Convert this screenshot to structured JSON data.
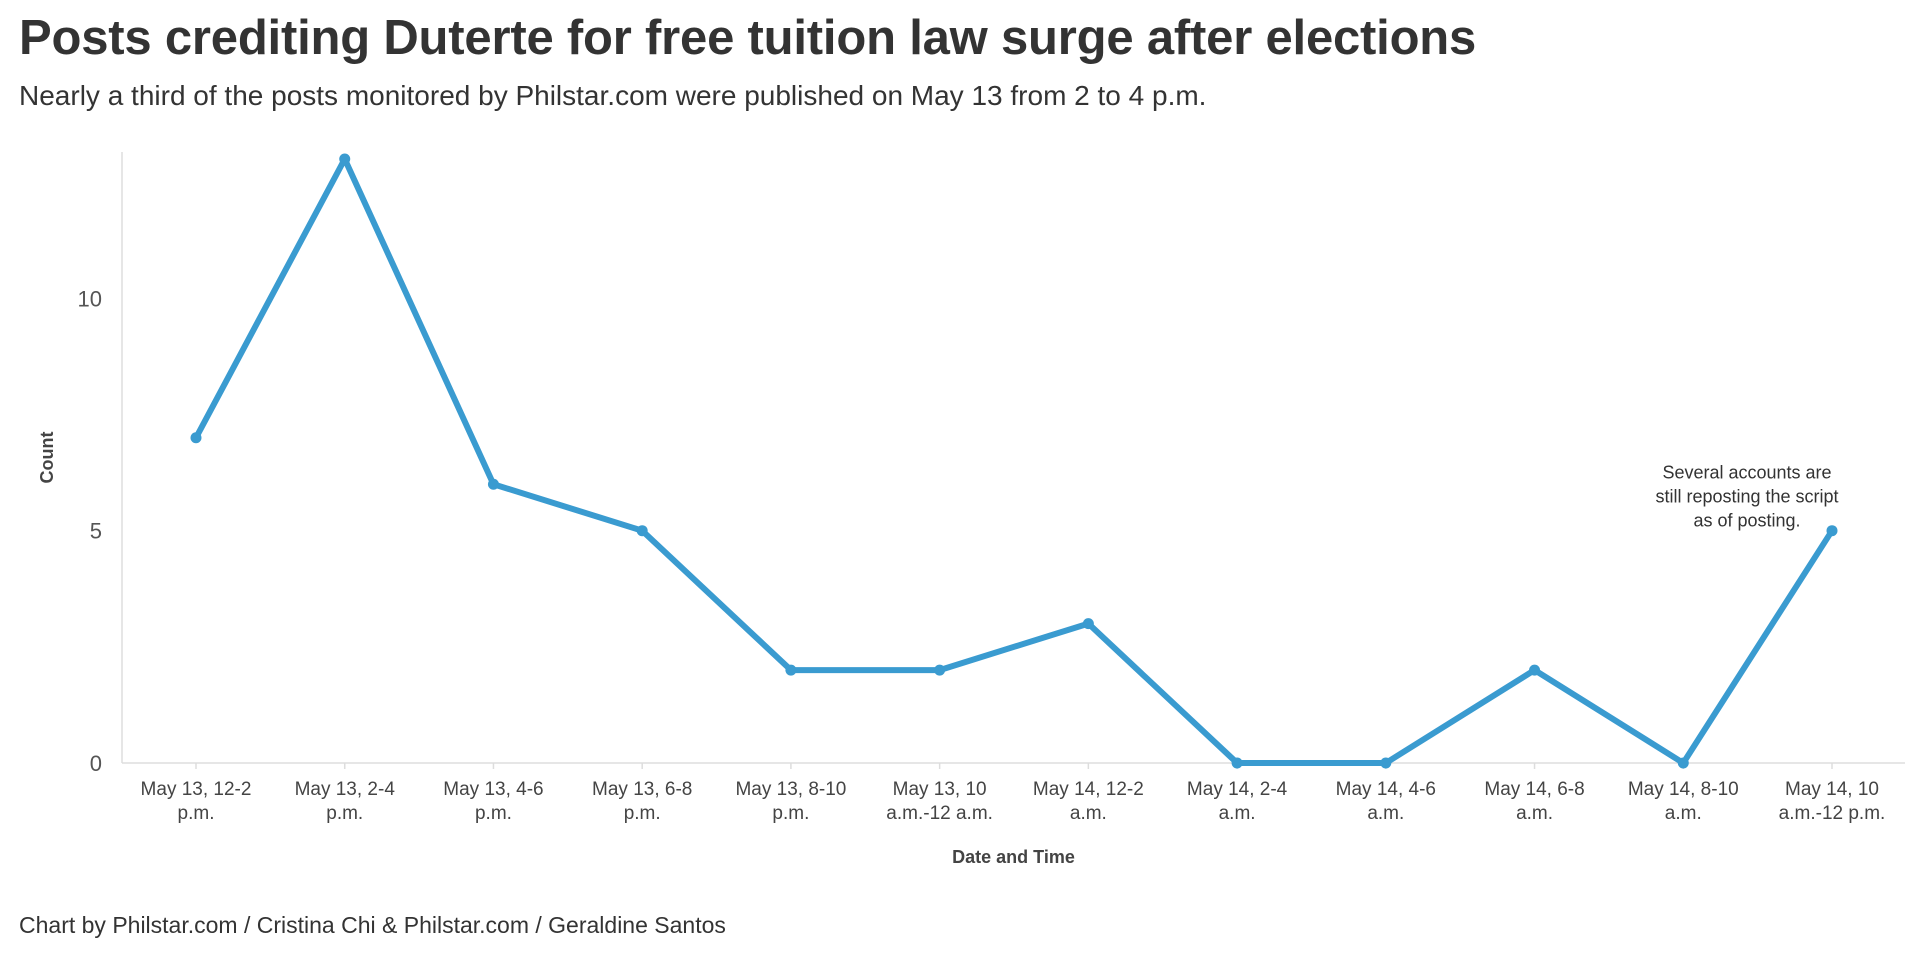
{
  "header": {
    "title": "Posts crediting Duterte for free tuition law surge after elections",
    "subtitle": "Nearly a third of the posts monitored by Philstar.com were published on May 13 from 2 to 4 p.m."
  },
  "footer": {
    "credit": "Chart by Philstar.com / Cristina Chi & Philstar.com / Geraldine Santos"
  },
  "chart_data": {
    "type": "line",
    "title": "Posts crediting Duterte for free tuition law surge after elections",
    "subtitle": "Nearly a third of the posts monitored by Philstar.com were published on May 13 from 2 to 4 p.m.",
    "xlabel": "Date and Time",
    "ylabel": "Count",
    "ylim": [
      0,
      13
    ],
    "yticks": [
      0,
      5,
      10
    ],
    "grid": false,
    "line_color": "#3a9bd0",
    "categories": [
      [
        "May 13, 12-2",
        "p.m."
      ],
      [
        "May 13, 2-4",
        "p.m."
      ],
      [
        "May 13, 4-6",
        "p.m."
      ],
      [
        "May 13, 6-8",
        "p.m."
      ],
      [
        "May 13, 8-10",
        "p.m."
      ],
      [
        "May 13, 10",
        "a.m.-12 a.m."
      ],
      [
        "May 14, 12-2",
        "a.m."
      ],
      [
        "May 14, 2-4",
        "a.m."
      ],
      [
        "May 14, 4-6",
        "a.m."
      ],
      [
        "May 14, 6-8",
        "a.m."
      ],
      [
        "May 14, 8-10",
        "a.m."
      ],
      [
        "May 14, 10",
        "a.m.-12 p.m."
      ]
    ],
    "series": [
      {
        "values": [
          7,
          13,
          6,
          5,
          2,
          2,
          3,
          0,
          0,
          2,
          0,
          5
        ]
      }
    ],
    "annotations": [
      {
        "category_index": 11,
        "lines": [
          "Several accounts are",
          "still reposting the script",
          "as of posting."
        ]
      }
    ]
  }
}
